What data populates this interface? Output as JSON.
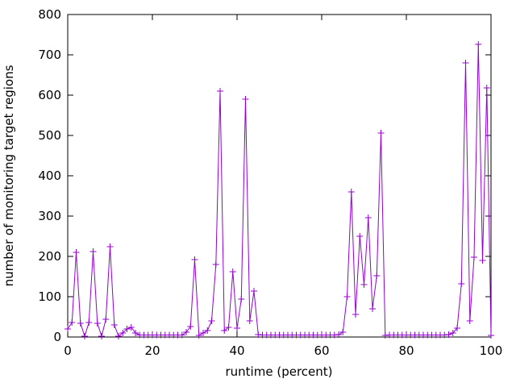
{
  "chart_data": {
    "type": "line",
    "title": "",
    "xlabel": "runtime (percent)",
    "ylabel": "number of monitoring target regions",
    "xlim": [
      0,
      100
    ],
    "ylim": [
      0,
      800
    ],
    "xticks": [
      0,
      20,
      40,
      60,
      80,
      100
    ],
    "yticks": [
      0,
      100,
      200,
      300,
      400,
      500,
      600,
      700,
      800
    ],
    "grid": false,
    "legend": false,
    "border_color": "#000000",
    "series": [
      {
        "name": "monitoring target regions",
        "color": "#9400D3",
        "marker": "plus",
        "line_width": 1,
        "points": [
          [
            0,
            20
          ],
          [
            1,
            36
          ],
          [
            2,
            210
          ],
          [
            3,
            34
          ],
          [
            4,
            2
          ],
          [
            5,
            36
          ],
          [
            6,
            212
          ],
          [
            7,
            34
          ],
          [
            8,
            2
          ],
          [
            9,
            44
          ],
          [
            10,
            224
          ],
          [
            11,
            30
          ],
          [
            12,
            2
          ],
          [
            13,
            10
          ],
          [
            14,
            20
          ],
          [
            15,
            24
          ],
          [
            16,
            10
          ],
          [
            17,
            5
          ],
          [
            18,
            5
          ],
          [
            19,
            5
          ],
          [
            20,
            5
          ],
          [
            21,
            5
          ],
          [
            22,
            5
          ],
          [
            23,
            5
          ],
          [
            24,
            5
          ],
          [
            25,
            5
          ],
          [
            26,
            5
          ],
          [
            27,
            5
          ],
          [
            28,
            12
          ],
          [
            29,
            26
          ],
          [
            30,
            192
          ],
          [
            31,
            4
          ],
          [
            32,
            10
          ],
          [
            33,
            16
          ],
          [
            34,
            40
          ],
          [
            35,
            180
          ],
          [
            36,
            610
          ],
          [
            37,
            16
          ],
          [
            38,
            24
          ],
          [
            39,
            162
          ],
          [
            40,
            22
          ],
          [
            41,
            94
          ],
          [
            42,
            590
          ],
          [
            43,
            40
          ],
          [
            44,
            114
          ],
          [
            45,
            6
          ],
          [
            46,
            5
          ],
          [
            47,
            5
          ],
          [
            48,
            5
          ],
          [
            49,
            5
          ],
          [
            50,
            5
          ],
          [
            51,
            5
          ],
          [
            52,
            5
          ],
          [
            53,
            5
          ],
          [
            54,
            5
          ],
          [
            55,
            5
          ],
          [
            56,
            5
          ],
          [
            57,
            5
          ],
          [
            58,
            5
          ],
          [
            59,
            5
          ],
          [
            60,
            5
          ],
          [
            61,
            5
          ],
          [
            62,
            5
          ],
          [
            63,
            5
          ],
          [
            64,
            6
          ],
          [
            65,
            12
          ],
          [
            66,
            100
          ],
          [
            67,
            360
          ],
          [
            68,
            56
          ],
          [
            69,
            250
          ],
          [
            70,
            130
          ],
          [
            71,
            296
          ],
          [
            72,
            70
          ],
          [
            73,
            152
          ],
          [
            74,
            506
          ],
          [
            75,
            4
          ],
          [
            76,
            5
          ],
          [
            77,
            5
          ],
          [
            78,
            5
          ],
          [
            79,
            5
          ],
          [
            80,
            5
          ],
          [
            81,
            5
          ],
          [
            82,
            5
          ],
          [
            83,
            5
          ],
          [
            84,
            5
          ],
          [
            85,
            5
          ],
          [
            86,
            5
          ],
          [
            87,
            5
          ],
          [
            88,
            5
          ],
          [
            89,
            5
          ],
          [
            90,
            6
          ],
          [
            91,
            10
          ],
          [
            92,
            22
          ],
          [
            93,
            132
          ],
          [
            94,
            680
          ],
          [
            95,
            40
          ],
          [
            96,
            198
          ],
          [
            97,
            726
          ],
          [
            98,
            190
          ],
          [
            99,
            618
          ],
          [
            100,
            4
          ]
        ]
      }
    ]
  }
}
